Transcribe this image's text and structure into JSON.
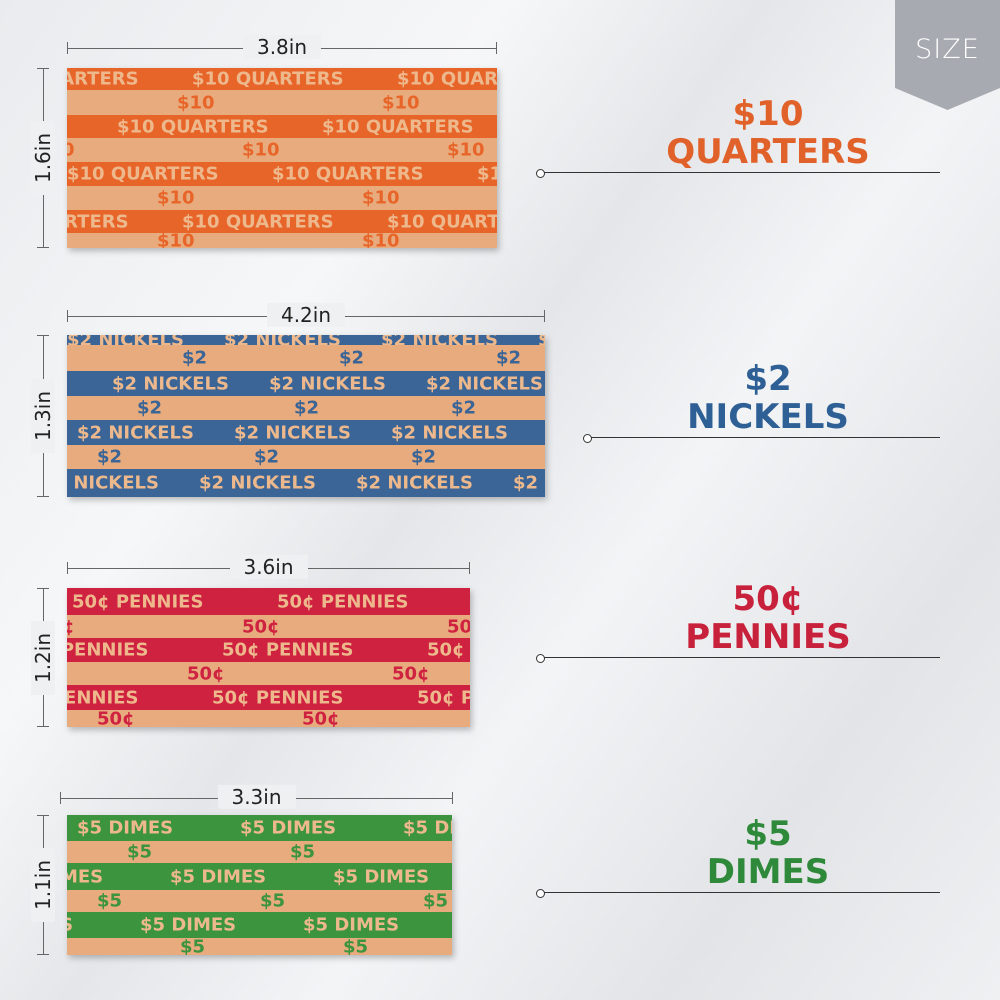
{
  "badge": {
    "text": "SIZE"
  },
  "wrappers": [
    {
      "id": "quarters",
      "width_label": "3.8in",
      "height_label": "1.6in",
      "band_text": "$10 QUARTERS",
      "kraft_text": "$10",
      "color": "#e8652a",
      "title_top": "$10",
      "title_bottom": "QUARTERS",
      "title_color": "#e0622a"
    },
    {
      "id": "nickels",
      "width_label": "4.2in",
      "height_label": "1.3in",
      "band_text": "$2 NICKELS",
      "kraft_text": "$2",
      "color": "#3a6596",
      "title_top": "$2",
      "title_bottom": "NICKELS",
      "title_color": "#2e5f95"
    },
    {
      "id": "pennies",
      "width_label": "3.6in",
      "height_label": "1.2in",
      "band_text": "50¢ PENNIES",
      "kraft_text": "50¢",
      "color": "#cf2140",
      "title_top": "50¢",
      "title_bottom": "PENNIES",
      "title_color": "#c8213c"
    },
    {
      "id": "dimes",
      "width_label": "3.3in",
      "height_label": "1.1in",
      "band_text": "$5 DIMES",
      "kraft_text": "$5",
      "color": "#3c943f",
      "title_top": "$5",
      "title_bottom": "DIMES",
      "title_color": "#2e8a3a"
    }
  ]
}
